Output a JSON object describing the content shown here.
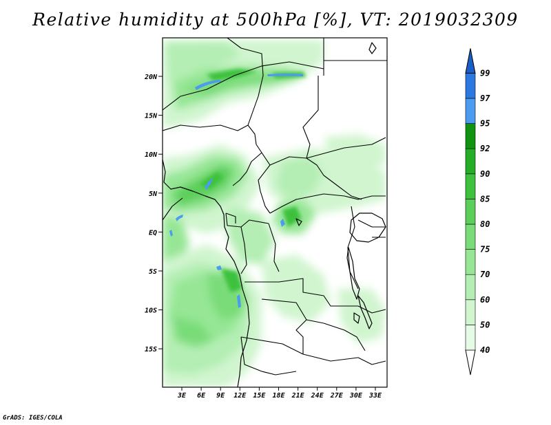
{
  "title": "Relative humidity at 500hPa [%], VT: 2019032309",
  "credit": "GrADS: IGES/COLA",
  "map": {
    "lat_labels": [
      "20N",
      "15N",
      "10N",
      "5N",
      "EQ",
      "5S",
      "10S",
      "15S"
    ],
    "lon_labels": [
      "3E",
      "6E",
      "9E",
      "12E",
      "15E",
      "18E",
      "21E",
      "24E",
      "27E",
      "30E",
      "33E"
    ]
  },
  "colorbar": {
    "levels": [
      "40",
      "50",
      "60",
      "70",
      "75",
      "80",
      "85",
      "90",
      "92",
      "95",
      "97",
      "99"
    ],
    "colors": [
      "#e6fbe6",
      "#d0f5cf",
      "#b4eeb4",
      "#96e695",
      "#79dc78",
      "#5ccf5a",
      "#3ec13c",
      "#25ad25",
      "#119311",
      "#4c9bf0",
      "#2a78e0",
      "#1a5ec8"
    ],
    "below_color": "#ffffff"
  }
}
